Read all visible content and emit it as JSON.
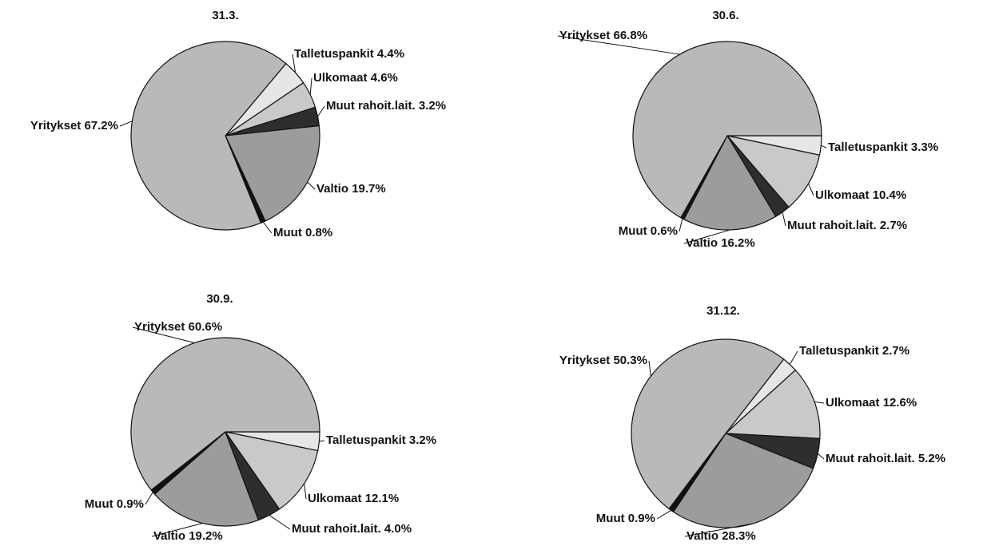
{
  "chart_data": [
    {
      "type": "pie",
      "title": "31.3.",
      "startangle": 40,
      "categories": [
        "Talletuspankit",
        "Ulkomaat",
        "Muut rahoit.lait.",
        "Valtio",
        "Muut",
        "Yritykset"
      ],
      "values": [
        4.4,
        4.6,
        3.2,
        19.7,
        0.8,
        67.2
      ],
      "value_labels": [
        "4.4%",
        "4.6%",
        "3.2%",
        "19.7%",
        "0.8%",
        "67.2%"
      ],
      "colors": [
        "#e6e6e6",
        "#c9c9c9",
        "#2e2e2e",
        "#9c9c9c",
        "#111111",
        "#b9b9b9"
      ]
    },
    {
      "type": "pie",
      "title": "30.6.",
      "startangle": 90,
      "categories": [
        "Talletuspankit",
        "Ulkomaat",
        "Muut rahoit.lait.",
        "Valtio",
        "Muut",
        "Yritykset"
      ],
      "values": [
        3.3,
        10.4,
        2.7,
        16.2,
        0.6,
        66.8
      ],
      "value_labels": [
        "3.3%",
        "10.4%",
        "2.7%",
        "16.2%",
        "0.6%",
        "66.8%"
      ],
      "colors": [
        "#e6e6e6",
        "#c9c9c9",
        "#2e2e2e",
        "#9c9c9c",
        "#111111",
        "#b9b9b9"
      ]
    },
    {
      "type": "pie",
      "title": "30.9.",
      "startangle": 90,
      "categories": [
        "Talletuspankit",
        "Ulkomaat",
        "Muut rahoit.lait.",
        "Valtio",
        "Muut",
        "Yritykset"
      ],
      "values": [
        3.2,
        12.1,
        4.0,
        19.2,
        0.9,
        60.6
      ],
      "value_labels": [
        "3.2%",
        "12.1%",
        "4.0%",
        "19.2%",
        "0.9%",
        "60.6%"
      ],
      "colors": [
        "#e6e6e6",
        "#c9c9c9",
        "#2e2e2e",
        "#9c9c9c",
        "#111111",
        "#b9b9b9"
      ]
    },
    {
      "type": "pie",
      "title": "31.12.",
      "startangle": 38,
      "categories": [
        "Talletuspankit",
        "Ulkomaat",
        "Muut rahoit.lait.",
        "Valtio",
        "Muut",
        "Yritykset"
      ],
      "values": [
        2.7,
        12.6,
        5.2,
        28.3,
        0.9,
        50.3
      ],
      "value_labels": [
        "2.7%",
        "12.6%",
        "5.2%",
        "28.3%",
        "0.9%",
        "50.3%"
      ],
      "colors": [
        "#e6e6e6",
        "#c9c9c9",
        "#2e2e2e",
        "#9c9c9c",
        "#111111",
        "#b9b9b9"
      ]
    }
  ]
}
